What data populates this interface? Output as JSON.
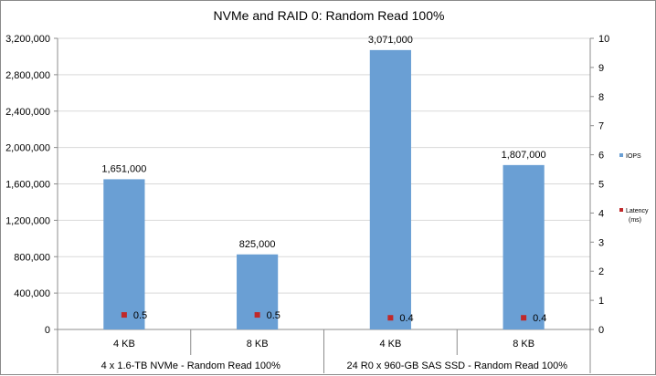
{
  "chart_data": {
    "type": "bar",
    "title": "NVMe and RAID 0: Random Read 100%",
    "categories": [
      "4 KB",
      "8 KB",
      "4 KB",
      "8 KB"
    ],
    "groups": [
      {
        "label": "4 x 1.6-TB NVMe - Random Read 100%",
        "span": [
          0,
          1
        ]
      },
      {
        "label": "24 R0 x 960-GB SAS SSD - Random Read 100%",
        "span": [
          2,
          3
        ]
      }
    ],
    "series": [
      {
        "name": "IOPS",
        "axis": "left",
        "kind": "bar",
        "color": "#6a9fd4",
        "values": [
          1651000,
          825000,
          3071000,
          1807000
        ],
        "labels": [
          "1,651,000",
          "825,000",
          "3,071,000",
          "1,807,000"
        ]
      },
      {
        "name": "Latency (ms)",
        "axis": "right",
        "kind": "marker",
        "color": "#c0282a",
        "values": [
          0.5,
          0.5,
          0.4,
          0.4
        ],
        "labels": [
          "0.5",
          "0.5",
          "0.4",
          "0.4"
        ]
      }
    ],
    "y_left": {
      "min": 0,
      "max": 3200000,
      "step": 400000,
      "ticks": [
        "0",
        "400,000",
        "800,000",
        "1,200,000",
        "1,600,000",
        "2,000,000",
        "2,400,000",
        "2,800,000",
        "3,200,000"
      ]
    },
    "y_right": {
      "min": 0,
      "max": 10,
      "step": 1,
      "ticks": [
        "0",
        "1",
        "2",
        "3",
        "4",
        "5",
        "6",
        "7",
        "8",
        "9",
        "10"
      ]
    },
    "legend": {
      "position": "right",
      "entries": [
        {
          "label": "IOPS",
          "color": "#6a9fd4"
        },
        {
          "label": "Latency",
          "sublabel": "(ms)",
          "color": "#c0282a"
        }
      ]
    },
    "grid": true
  }
}
